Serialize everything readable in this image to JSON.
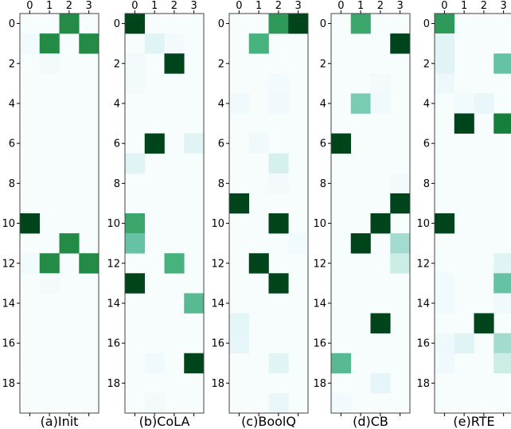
{
  "colors": {
    "low": "#f7fcfd",
    "high": "#00441b",
    "frame": "#444444"
  },
  "chart_data": {
    "type": "heatmap",
    "colormap": "BuGn",
    "value_range": [
      0,
      1
    ],
    "rows": 20,
    "cols": 4,
    "x_ticks": [
      "0",
      "1",
      "2",
      "3"
    ],
    "y_ticks": [
      "0",
      "2",
      "4",
      "6",
      "8",
      "10",
      "12",
      "14",
      "16",
      "18"
    ],
    "panels": [
      {
        "caption": "(a)Init",
        "cells": [
          [
            0,
            2,
            0.75
          ],
          [
            1,
            0,
            0.04
          ],
          [
            1,
            1,
            0.75
          ],
          [
            1,
            3,
            0.75
          ],
          [
            2,
            1,
            0.03
          ],
          [
            10,
            0,
            1.0
          ],
          [
            11,
            2,
            0.75
          ],
          [
            12,
            0,
            0.04
          ],
          [
            12,
            1,
            0.75
          ],
          [
            12,
            3,
            0.75
          ],
          [
            13,
            1,
            0.03
          ]
        ]
      },
      {
        "caption": "(b)CoLA",
        "cells": [
          [
            0,
            0,
            1.0
          ],
          [
            1,
            1,
            0.15
          ],
          [
            1,
            2,
            0.03
          ],
          [
            2,
            0,
            0.03
          ],
          [
            2,
            2,
            1.0
          ],
          [
            3,
            0,
            0.03
          ],
          [
            6,
            1,
            1.0
          ],
          [
            6,
            3,
            0.15
          ],
          [
            7,
            0,
            0.15
          ],
          [
            10,
            0,
            0.65
          ],
          [
            11,
            0,
            0.5
          ],
          [
            12,
            2,
            0.6
          ],
          [
            13,
            0,
            1.0
          ],
          [
            14,
            3,
            0.55
          ],
          [
            17,
            1,
            0.05
          ],
          [
            17,
            3,
            1.0
          ],
          [
            19,
            1,
            0.03
          ]
        ]
      },
      {
        "caption": "(c)BoolQ",
        "cells": [
          [
            0,
            2,
            0.7
          ],
          [
            0,
            3,
            1.0
          ],
          [
            1,
            1,
            0.6
          ],
          [
            3,
            2,
            0.04
          ],
          [
            4,
            0,
            0.05
          ],
          [
            4,
            2,
            0.05
          ],
          [
            6,
            1,
            0.05
          ],
          [
            7,
            2,
            0.2
          ],
          [
            8,
            2,
            0.03
          ],
          [
            9,
            0,
            1.0
          ],
          [
            10,
            2,
            1.0
          ],
          [
            11,
            3,
            0.04
          ],
          [
            12,
            1,
            1.0
          ],
          [
            13,
            2,
            1.0
          ],
          [
            15,
            0,
            0.13
          ],
          [
            16,
            0,
            0.12
          ],
          [
            17,
            2,
            0.15
          ],
          [
            19,
            2,
            0.1
          ]
        ]
      },
      {
        "caption": "(d)CB",
        "cells": [
          [
            0,
            1,
            0.65
          ],
          [
            1,
            3,
            1.0
          ],
          [
            3,
            2,
            0.03
          ],
          [
            4,
            1,
            0.45
          ],
          [
            4,
            2,
            0.05
          ],
          [
            6,
            0,
            1.0
          ],
          [
            8,
            3,
            0.03
          ],
          [
            9,
            3,
            1.0
          ],
          [
            10,
            2,
            1.0
          ],
          [
            11,
            1,
            1.0
          ],
          [
            11,
            3,
            0.35
          ],
          [
            12,
            3,
            0.25
          ],
          [
            15,
            2,
            1.0
          ],
          [
            17,
            0,
            0.55
          ],
          [
            18,
            2,
            0.12
          ],
          [
            19,
            0,
            0.04
          ]
        ]
      },
      {
        "caption": "(e)RTE",
        "cells": [
          [
            0,
            0,
            0.7
          ],
          [
            1,
            0,
            0.15
          ],
          [
            2,
            0,
            0.15
          ],
          [
            2,
            3,
            0.5
          ],
          [
            3,
            0,
            0.07
          ],
          [
            4,
            1,
            0.04
          ],
          [
            4,
            2,
            0.1
          ],
          [
            5,
            1,
            1.0
          ],
          [
            5,
            3,
            0.8
          ],
          [
            10,
            0,
            1.0
          ],
          [
            12,
            3,
            0.15
          ],
          [
            13,
            0,
            0.04
          ],
          [
            13,
            3,
            0.5
          ],
          [
            14,
            0,
            0.04
          ],
          [
            14,
            3,
            0.05
          ],
          [
            15,
            2,
            1.0
          ],
          [
            16,
            0,
            0.06
          ],
          [
            16,
            1,
            0.15
          ],
          [
            16,
            3,
            0.35
          ],
          [
            17,
            0,
            0.05
          ],
          [
            17,
            3,
            0.25
          ]
        ]
      }
    ]
  }
}
